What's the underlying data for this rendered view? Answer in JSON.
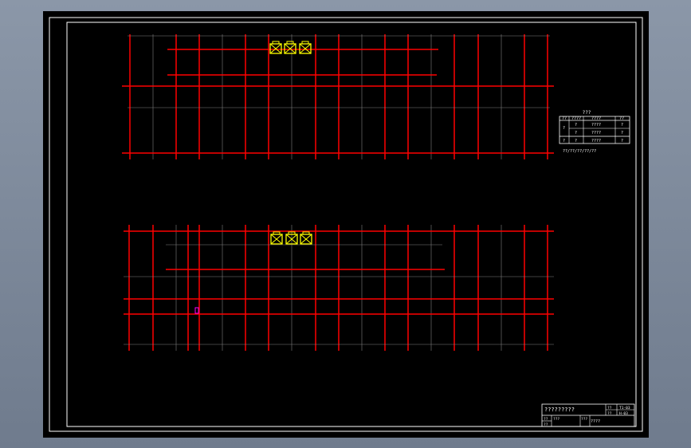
{
  "colors": {
    "background": "#000000",
    "axis_line": "#ff0000",
    "grid_line": "#808080",
    "frame": "#ffffff",
    "equipment": "#ffff00",
    "marker": "#ff00ff"
  },
  "legend": {
    "title": "???",
    "headers": [
      "??",
      "????",
      "????",
      "??"
    ],
    "rows": [
      [
        "?",
        "?",
        "????",
        "?"
      ],
      [
        "",
        "?",
        "????",
        "?"
      ],
      [
        "?",
        "?",
        "????",
        "?"
      ]
    ],
    "note": "??/??/??/??/??"
  },
  "title_block": {
    "drawing_name": "?????????",
    "label_1": "??",
    "value_1": "T1-03",
    "label_2": "??",
    "value_2": "H-03",
    "designer_label": "??",
    "designer_value": "???",
    "checker_label": "???",
    "checker_value": "????",
    "bottom_label": "??"
  }
}
